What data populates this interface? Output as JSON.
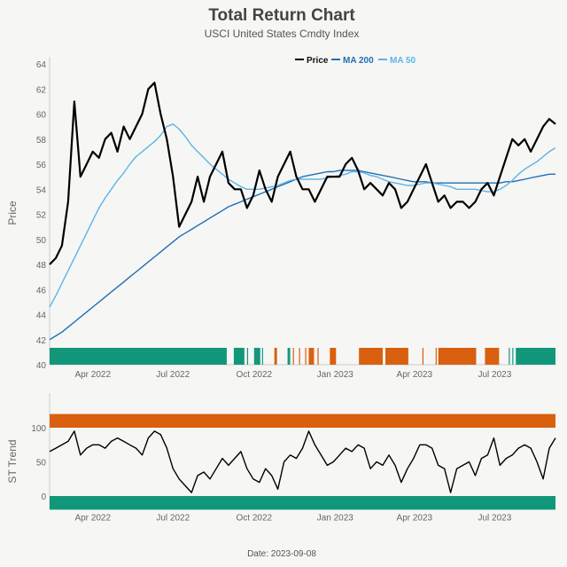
{
  "chart_data": [
    {
      "type": "line",
      "title": "Total Return Chart",
      "subtitle": "USCI United States Cmdty Index",
      "ylabel": "Price",
      "xlabel": "",
      "ylim": [
        40,
        64
      ],
      "yticks": [
        40,
        42,
        44,
        46,
        48,
        50,
        52,
        54,
        56,
        58,
        60,
        62,
        64
      ],
      "xticks": [
        {
          "date": "2022-04-01",
          "label": "Apr 2022"
        },
        {
          "date": "2022-07-01",
          "label": "Jul 2022"
        },
        {
          "date": "2022-10-01",
          "label": "Oct 2022"
        },
        {
          "date": "2023-01-01",
          "label": "Jan 2023"
        },
        {
          "date": "2023-04-01",
          "label": "Apr 2023"
        },
        {
          "date": "2023-07-01",
          "label": "Jul 2023"
        }
      ],
      "xlim": [
        "2022-02-11",
        "2023-09-08"
      ],
      "legend_position": "top-right",
      "x": [
        "2022-02-11",
        "2022-02-18",
        "2022-02-25",
        "2022-03-04",
        "2022-03-11",
        "2022-03-18",
        "2022-03-25",
        "2022-04-01",
        "2022-04-08",
        "2022-04-15",
        "2022-04-22",
        "2022-04-29",
        "2022-05-06",
        "2022-05-13",
        "2022-05-20",
        "2022-05-27",
        "2022-06-03",
        "2022-06-10",
        "2022-06-17",
        "2022-06-24",
        "2022-07-01",
        "2022-07-08",
        "2022-07-15",
        "2022-07-22",
        "2022-07-29",
        "2022-08-05",
        "2022-08-12",
        "2022-08-19",
        "2022-08-26",
        "2022-09-02",
        "2022-09-09",
        "2022-09-16",
        "2022-09-23",
        "2022-09-30",
        "2022-10-07",
        "2022-10-14",
        "2022-10-21",
        "2022-10-28",
        "2022-11-04",
        "2022-11-11",
        "2022-11-18",
        "2022-11-25",
        "2022-12-02",
        "2022-12-09",
        "2022-12-16",
        "2022-12-23",
        "2022-12-30",
        "2023-01-06",
        "2023-01-13",
        "2023-01-20",
        "2023-01-27",
        "2023-02-03",
        "2023-02-10",
        "2023-02-17",
        "2023-02-24",
        "2023-03-03",
        "2023-03-10",
        "2023-03-17",
        "2023-03-24",
        "2023-03-31",
        "2023-04-07",
        "2023-04-14",
        "2023-04-21",
        "2023-04-28",
        "2023-05-05",
        "2023-05-12",
        "2023-05-19",
        "2023-05-26",
        "2023-06-02",
        "2023-06-09",
        "2023-06-16",
        "2023-06-23",
        "2023-06-30",
        "2023-07-07",
        "2023-07-14",
        "2023-07-21",
        "2023-07-28",
        "2023-08-04",
        "2023-08-11",
        "2023-08-18",
        "2023-08-25",
        "2023-09-01",
        "2023-09-08"
      ],
      "series": [
        {
          "name": "Price",
          "color": "#000000",
          "values": [
            48,
            48.5,
            49.5,
            53,
            61,
            55,
            56,
            57,
            56.5,
            58,
            58.5,
            57,
            59,
            58,
            59,
            60,
            62,
            62.5,
            60,
            58,
            55,
            51,
            52,
            53,
            55,
            53,
            55,
            56,
            57,
            54.5,
            54,
            54,
            52.5,
            53.5,
            55.5,
            54,
            53,
            55,
            56,
            57,
            55,
            54,
            54,
            53,
            54,
            55,
            55,
            55,
            56,
            56.5,
            55.5,
            54,
            54.5,
            54,
            53.5,
            54.5,
            54,
            52.5,
            53,
            54,
            55,
            56,
            54.5,
            53,
            53.5,
            52.5,
            53,
            53,
            52.5,
            53,
            54,
            54.5,
            53.5,
            55,
            56.5,
            58,
            57.5,
            58,
            57,
            58,
            59,
            59.6,
            59.2
          ]
        },
        {
          "name": "MA 200",
          "color": "#1f6fb5",
          "values": [
            42,
            42.3,
            42.6,
            43,
            43.4,
            43.8,
            44.2,
            44.6,
            45,
            45.4,
            45.8,
            46.2,
            46.6,
            47,
            47.4,
            47.8,
            48.2,
            48.6,
            49,
            49.4,
            49.8,
            50.2,
            50.5,
            50.8,
            51.1,
            51.4,
            51.7,
            52,
            52.3,
            52.6,
            52.8,
            53,
            53.2,
            53.4,
            53.6,
            53.8,
            54,
            54.2,
            54.4,
            54.6,
            54.8,
            55,
            55.1,
            55.2,
            55.3,
            55.4,
            55.4,
            55.5,
            55.5,
            55.5,
            55.5,
            55.4,
            55.3,
            55.2,
            55.1,
            55,
            54.9,
            54.8,
            54.7,
            54.6,
            54.6,
            54.6,
            54.5,
            54.5,
            54.5,
            54.5,
            54.5,
            54.5,
            54.5,
            54.5,
            54.5,
            54.5,
            54.5,
            54.5,
            54.6,
            54.6,
            54.7,
            54.8,
            54.9,
            55,
            55.1,
            55.2,
            55.2
          ]
        },
        {
          "name": "MA 50",
          "color": "#5bb5e8",
          "values": [
            44.6,
            45.5,
            46.5,
            47.5,
            48.5,
            49.5,
            50.5,
            51.5,
            52.5,
            53.3,
            54,
            54.7,
            55.3,
            56,
            56.6,
            57,
            57.4,
            57.8,
            58.3,
            59,
            59.2,
            58.8,
            58.2,
            57.5,
            57,
            56.5,
            56,
            55.6,
            55.2,
            54.8,
            54.5,
            54.2,
            54,
            54,
            54,
            54.1,
            54.2,
            54.3,
            54.5,
            54.7,
            54.8,
            54.8,
            54.8,
            54.8,
            54.8,
            54.9,
            55,
            55.1,
            55.2,
            55.4,
            55.4,
            55.3,
            55.1,
            55,
            54.8,
            54.6,
            54.5,
            54.4,
            54.3,
            54.3,
            54.4,
            54.5,
            54.5,
            54.4,
            54.3,
            54.2,
            54,
            54,
            54,
            54,
            53.9,
            53.8,
            53.8,
            54,
            54.3,
            54.7,
            55.2,
            55.6,
            55.9,
            56.2,
            56.6,
            57,
            57.3
          ]
        }
      ],
      "signal_band": {
        "colors": {
          "bullish": "#12977b",
          "bearish": "#d9600f"
        },
        "segments": [
          [
            "2022-02-11",
            "2022-08-31",
            "bullish"
          ],
          [
            "2022-09-08",
            "2022-09-20",
            "bullish"
          ],
          [
            "2022-09-23",
            "2022-09-24",
            "bullish"
          ],
          [
            "2022-10-01",
            "2022-10-08",
            "bullish"
          ],
          [
            "2022-10-10",
            "2022-10-11",
            "bullish"
          ],
          [
            "2022-10-24",
            "2022-10-27",
            "bearish"
          ],
          [
            "2022-11-08",
            "2022-11-11",
            "bullish"
          ],
          [
            "2022-11-14",
            "2022-11-15",
            "bearish"
          ],
          [
            "2022-11-21",
            "2022-11-22",
            "bearish"
          ],
          [
            "2022-11-28",
            "2022-11-29",
            "bearish"
          ],
          [
            "2022-12-02",
            "2022-12-08",
            "bearish"
          ],
          [
            "2022-12-12",
            "2022-12-13",
            "bearish"
          ],
          [
            "2022-12-26",
            "2023-01-02",
            "bearish"
          ],
          [
            "2023-01-28",
            "2023-02-24",
            "bearish"
          ],
          [
            "2023-02-27",
            "2023-03-25",
            "bearish"
          ],
          [
            "2023-04-10",
            "2023-04-11",
            "bearish"
          ],
          [
            "2023-04-25",
            "2023-04-26",
            "bearish"
          ],
          [
            "2023-04-28",
            "2023-06-10",
            "bearish"
          ],
          [
            "2023-06-20",
            "2023-07-06",
            "bearish"
          ],
          [
            "2023-07-17",
            "2023-07-18",
            "bullish"
          ],
          [
            "2023-07-21",
            "2023-07-22",
            "bullish"
          ],
          [
            "2023-07-25",
            "2023-09-08",
            "bullish"
          ]
        ]
      }
    },
    {
      "type": "line",
      "ylabel": "ST Trend",
      "yticks": [
        0,
        50,
        100
      ],
      "ylim": [
        -20,
        150
      ],
      "bands": [
        {
          "from": 100,
          "to": 120,
          "color": "#d9600f"
        },
        {
          "from": -20,
          "to": 0,
          "color": "#12977b"
        }
      ],
      "series": [
        {
          "color": "#000000",
          "values": [
            65,
            70,
            75,
            80,
            95,
            60,
            70,
            75,
            75,
            70,
            80,
            85,
            80,
            75,
            70,
            60,
            85,
            95,
            90,
            70,
            40,
            25,
            15,
            5,
            30,
            35,
            25,
            40,
            55,
            45,
            55,
            65,
            40,
            25,
            20,
            40,
            30,
            10,
            50,
            60,
            55,
            70,
            95,
            75,
            60,
            45,
            50,
            60,
            70,
            65,
            75,
            70,
            40,
            50,
            45,
            60,
            45,
            20,
            40,
            55,
            75,
            75,
            70,
            45,
            40,
            5,
            40,
            45,
            50,
            30,
            55,
            60,
            85,
            45,
            55,
            60,
            70,
            75,
            70,
            50,
            25,
            70,
            85
          ]
        }
      ]
    }
  ],
  "legend": {
    "price": "Price",
    "ma200": "MA 200",
    "ma50": "MA 50"
  },
  "footer": "Date: 2023-09-08"
}
